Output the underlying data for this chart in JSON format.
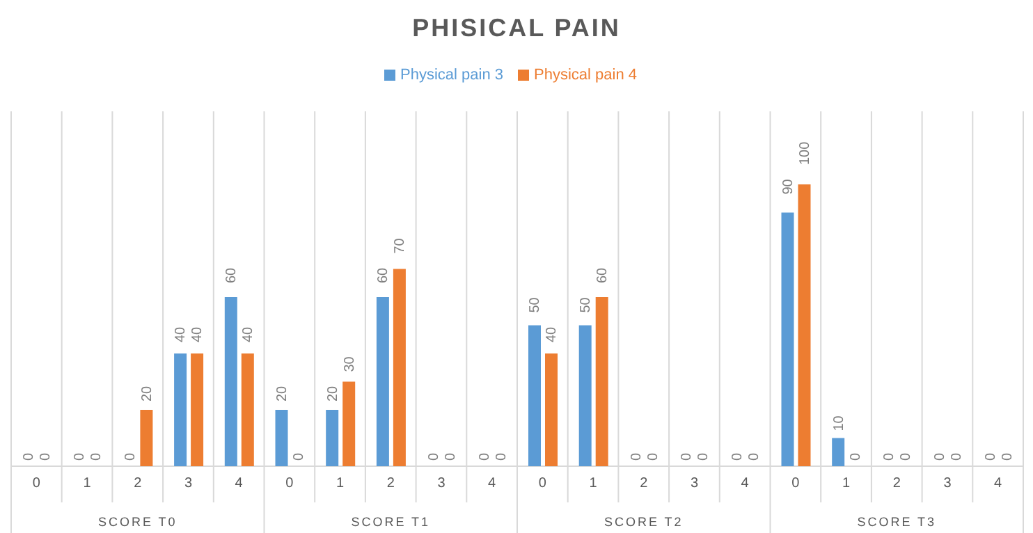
{
  "chart_data": {
    "type": "bar",
    "title": "PHISICAL PAIN",
    "categories": [
      "0",
      "1",
      "2",
      "3",
      "4",
      "0",
      "1",
      "2",
      "3",
      "4",
      "0",
      "1",
      "2",
      "3",
      "4",
      "0",
      "1",
      "2",
      "3",
      "4"
    ],
    "series": [
      {
        "name": "Physical pain 3",
        "color": "#5b9bd5",
        "values": [
          0,
          0,
          0,
          40,
          60,
          20,
          20,
          60,
          0,
          0,
          50,
          50,
          0,
          0,
          0,
          90,
          10,
          0,
          0,
          0
        ]
      },
      {
        "name": "Physical pain 4",
        "color": "#ed7d31",
        "values": [
          0,
          0,
          20,
          40,
          40,
          0,
          30,
          70,
          0,
          0,
          40,
          60,
          0,
          0,
          0,
          100,
          0,
          0,
          0,
          0
        ]
      }
    ],
    "annotations": [
      "SCORE T0",
      "SCORE T1",
      "SCORE T2",
      "SCORE T3"
    ],
    "data_labels": true,
    "grid": "x",
    "legend": "top"
  }
}
